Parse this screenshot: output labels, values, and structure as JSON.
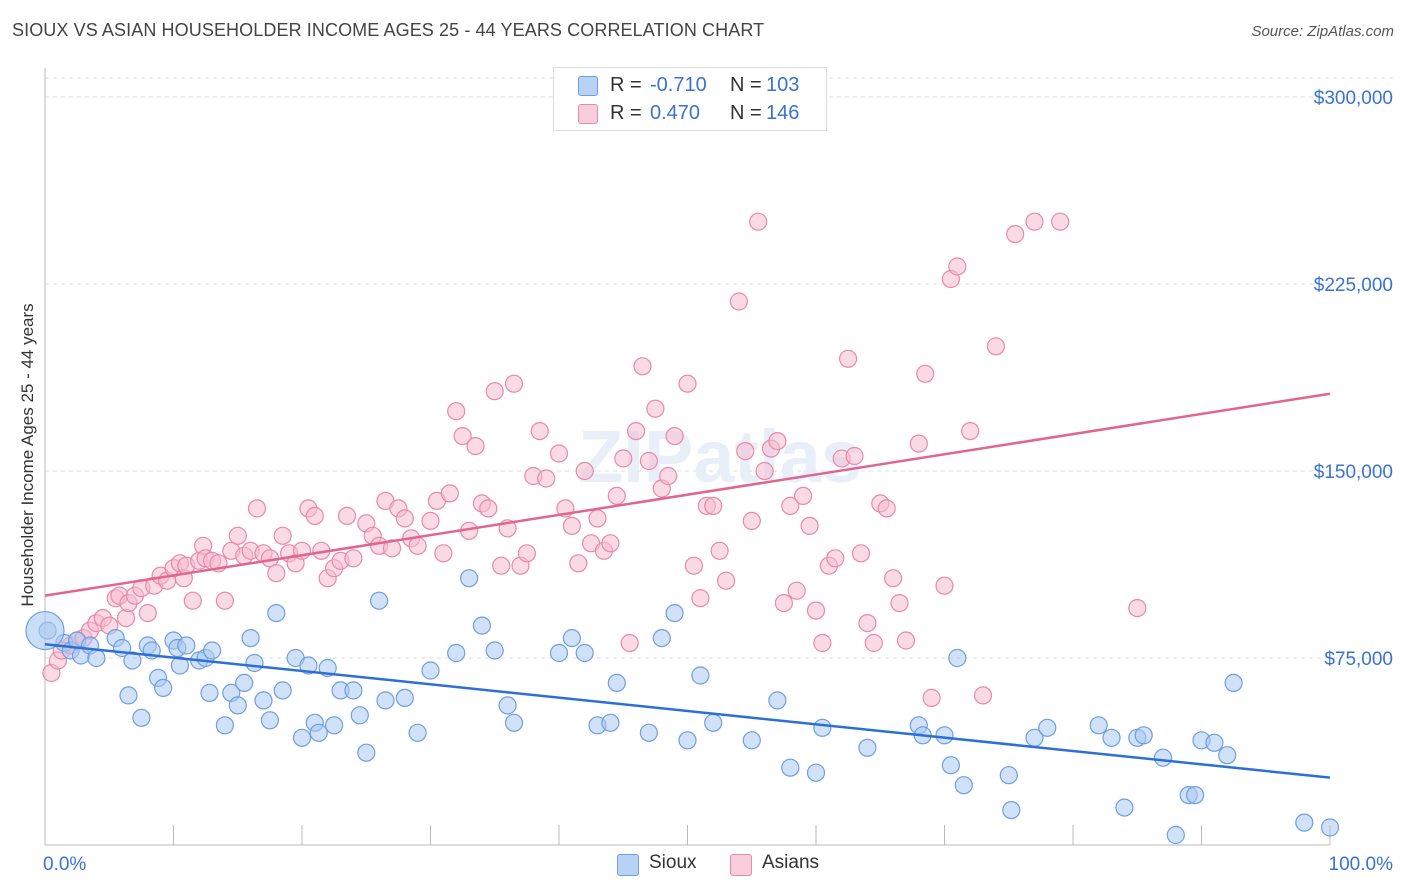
{
  "header": {
    "title": "SIOUX VS ASIAN HOUSEHOLDER INCOME AGES 25 - 44 YEARS CORRELATION CHART",
    "source": "Source: ZipAtlas.com"
  },
  "legend": {
    "rows": [
      {
        "r_label": "R =",
        "r_value": "-0.710",
        "n_label": "N =",
        "n_value": "103"
      },
      {
        "r_label": "R =",
        "r_value": "0.470",
        "n_label": "N =",
        "n_value": "146"
      }
    ]
  },
  "bottom_legend": {
    "sioux": "Sioux",
    "asians": "Asians"
  },
  "watermark": "ZIPatlas",
  "colors": {
    "sioux_fill": "#a9c8f2",
    "sioux_stroke": "#6e9fe0",
    "sioux_line": "#2e6fd6",
    "asian_fill": "#f6bccf",
    "asian_stroke": "#e889a8",
    "asian_line": "#e06690",
    "tick_label": "#3a72d4",
    "grid": "#dddddd"
  },
  "chart_data": {
    "type": "scatter",
    "title": "SIOUX VS ASIAN HOUSEHOLDER INCOME AGES 25 - 44 YEARS CORRELATION CHART",
    "xlabel": "",
    "ylabel": "Householder Income Ages 25 - 44 years",
    "xlim": [
      0,
      100
    ],
    "ylim": [
      0,
      300000
    ],
    "x_tick_labels": [
      "0.0%",
      "100.0%"
    ],
    "y_ticks": [
      75000,
      150000,
      225000,
      300000
    ],
    "y_tick_labels": [
      "$75,000",
      "$150,000",
      "$225,000",
      "$300,000"
    ],
    "grid": "horizontal dashed",
    "legend_position": "top-center",
    "series": [
      {
        "name": "Sioux",
        "R": -0.71,
        "N": 103,
        "trend": [
          [
            0,
            80500
          ],
          [
            100,
            27000
          ]
        ],
        "points": [
          [
            0.2,
            86000
          ],
          [
            1.5,
            81000
          ],
          [
            2,
            78000
          ],
          [
            2.5,
            82000
          ],
          [
            2.8,
            76000
          ],
          [
            3.5,
            80000
          ],
          [
            4,
            75000
          ],
          [
            5.5,
            83000
          ],
          [
            6,
            79000
          ],
          [
            6.5,
            60000
          ],
          [
            6.8,
            74000
          ],
          [
            7.5,
            51000
          ],
          [
            8,
            80000
          ],
          [
            8.3,
            78000
          ],
          [
            8.8,
            67000
          ],
          [
            9.2,
            63000
          ],
          [
            10,
            82000
          ],
          [
            10.3,
            79000
          ],
          [
            10.5,
            72000
          ],
          [
            11,
            80000
          ],
          [
            12,
            74000
          ],
          [
            12.5,
            75000
          ],
          [
            12.8,
            61000
          ],
          [
            13,
            78000
          ],
          [
            14,
            48000
          ],
          [
            14.5,
            61000
          ],
          [
            15,
            56000
          ],
          [
            15.5,
            65000
          ],
          [
            16,
            83000
          ],
          [
            16.3,
            73000
          ],
          [
            17,
            58000
          ],
          [
            17.5,
            50000
          ],
          [
            18,
            93000
          ],
          [
            18.5,
            62000
          ],
          [
            19.5,
            75000
          ],
          [
            20,
            43000
          ],
          [
            20.5,
            72000
          ],
          [
            21,
            49000
          ],
          [
            21.3,
            45000
          ],
          [
            22,
            71000
          ],
          [
            22.5,
            48000
          ],
          [
            23,
            62000
          ],
          [
            24,
            62000
          ],
          [
            24.5,
            52000
          ],
          [
            25,
            37000
          ],
          [
            26,
            98000
          ],
          [
            26.5,
            58000
          ],
          [
            28,
            59000
          ],
          [
            29,
            45000
          ],
          [
            30,
            70000
          ],
          [
            32,
            77000
          ],
          [
            33,
            107000
          ],
          [
            34,
            88000
          ],
          [
            35,
            78000
          ],
          [
            36,
            56000
          ],
          [
            36.5,
            49000
          ],
          [
            40,
            77000
          ],
          [
            41,
            83000
          ],
          [
            42,
            77000
          ],
          [
            43,
            48000
          ],
          [
            44,
            49000
          ],
          [
            44.5,
            65000
          ],
          [
            47,
            45000
          ],
          [
            48,
            83000
          ],
          [
            49,
            93000
          ],
          [
            50,
            42000
          ],
          [
            51,
            68000
          ],
          [
            52,
            49000
          ],
          [
            55,
            42000
          ],
          [
            57,
            58000
          ],
          [
            58,
            31000
          ],
          [
            60,
            29000
          ],
          [
            60.5,
            47000
          ],
          [
            64,
            39000
          ],
          [
            68,
            48000
          ],
          [
            68.3,
            44000
          ],
          [
            70,
            44000
          ],
          [
            70.5,
            32000
          ],
          [
            71,
            75000
          ],
          [
            71.5,
            24000
          ],
          [
            75,
            28000
          ],
          [
            75.2,
            14000
          ],
          [
            77,
            43000
          ],
          [
            78,
            47000
          ],
          [
            82,
            48000
          ],
          [
            83,
            43000
          ],
          [
            84,
            15000
          ],
          [
            85,
            43000
          ],
          [
            85.5,
            44000
          ],
          [
            87,
            35000
          ],
          [
            88,
            4000
          ],
          [
            89,
            20000
          ],
          [
            89.5,
            20000
          ],
          [
            90,
            42000
          ],
          [
            91,
            41000
          ],
          [
            92,
            36000
          ],
          [
            92.5,
            65000
          ],
          [
            98,
            9000
          ],
          [
            100,
            7000
          ]
        ]
      },
      {
        "name": "Asians",
        "R": 0.47,
        "N": 146,
        "trend": [
          [
            0,
            100000
          ],
          [
            100,
            181000
          ]
        ],
        "points": [
          [
            0.5,
            69000
          ],
          [
            1,
            74000
          ],
          [
            1.3,
            78000
          ],
          [
            2,
            80000
          ],
          [
            2.5,
            82000
          ],
          [
            3,
            83000
          ],
          [
            3.5,
            86000
          ],
          [
            4,
            89000
          ],
          [
            4.5,
            91000
          ],
          [
            5,
            88000
          ],
          [
            5.5,
            99000
          ],
          [
            5.8,
            100000
          ],
          [
            6.3,
            91000
          ],
          [
            6.5,
            97000
          ],
          [
            7,
            100000
          ],
          [
            7.5,
            103000
          ],
          [
            8,
            93000
          ],
          [
            8.5,
            104000
          ],
          [
            9,
            108000
          ],
          [
            9.5,
            106000
          ],
          [
            10,
            111000
          ],
          [
            10.5,
            113000
          ],
          [
            10.8,
            107000
          ],
          [
            11,
            112000
          ],
          [
            11.5,
            98000
          ],
          [
            12,
            114000
          ],
          [
            12.3,
            120000
          ],
          [
            12.5,
            115000
          ],
          [
            13,
            114000
          ],
          [
            13.5,
            113000
          ],
          [
            14,
            98000
          ],
          [
            14.5,
            118000
          ],
          [
            15,
            124000
          ],
          [
            15.5,
            116000
          ],
          [
            16,
            118000
          ],
          [
            16.5,
            135000
          ],
          [
            17,
            117000
          ],
          [
            17.5,
            115000
          ],
          [
            18,
            109000
          ],
          [
            18.5,
            124000
          ],
          [
            19,
            117000
          ],
          [
            19.5,
            113000
          ],
          [
            20,
            118000
          ],
          [
            20.5,
            135000
          ],
          [
            21,
            132000
          ],
          [
            21.5,
            118000
          ],
          [
            22,
            107000
          ],
          [
            22.5,
            111000
          ],
          [
            23,
            114000
          ],
          [
            23.5,
            132000
          ],
          [
            24,
            115000
          ],
          [
            25,
            129000
          ],
          [
            25.5,
            124000
          ],
          [
            26,
            120000
          ],
          [
            26.5,
            138000
          ],
          [
            27,
            119000
          ],
          [
            27.5,
            135000
          ],
          [
            28,
            131000
          ],
          [
            28.5,
            123000
          ],
          [
            29,
            120000
          ],
          [
            30,
            130000
          ],
          [
            30.5,
            138000
          ],
          [
            31,
            117000
          ],
          [
            31.5,
            141000
          ],
          [
            32,
            174000
          ],
          [
            32.5,
            164000
          ],
          [
            33,
            126000
          ],
          [
            33.5,
            160000
          ],
          [
            34,
            137000
          ],
          [
            34.5,
            135000
          ],
          [
            35,
            182000
          ],
          [
            35.5,
            112000
          ],
          [
            36,
            127000
          ],
          [
            36.5,
            185000
          ],
          [
            37,
            112000
          ],
          [
            37.5,
            117000
          ],
          [
            38,
            148000
          ],
          [
            38.5,
            166000
          ],
          [
            39,
            147000
          ],
          [
            40,
            157000
          ],
          [
            40.5,
            135000
          ],
          [
            41,
            128000
          ],
          [
            41.5,
            113000
          ],
          [
            42,
            150000
          ],
          [
            42.5,
            121000
          ],
          [
            43,
            131000
          ],
          [
            43.5,
            118000
          ],
          [
            44,
            121000
          ],
          [
            44.5,
            140000
          ],
          [
            45,
            155000
          ],
          [
            45.5,
            81000
          ],
          [
            46,
            166000
          ],
          [
            46.5,
            192000
          ],
          [
            47,
            154000
          ],
          [
            47.5,
            175000
          ],
          [
            48,
            143000
          ],
          [
            48.5,
            148000
          ],
          [
            49,
            164000
          ],
          [
            50,
            185000
          ],
          [
            50.5,
            112000
          ],
          [
            51,
            99000
          ],
          [
            51.5,
            136000
          ],
          [
            52,
            136000
          ],
          [
            52.5,
            118000
          ],
          [
            53,
            106000
          ],
          [
            54,
            218000
          ],
          [
            54.5,
            158000
          ],
          [
            55,
            130000
          ],
          [
            55.5,
            250000
          ],
          [
            56,
            150000
          ],
          [
            56.5,
            159000
          ],
          [
            57,
            162000
          ],
          [
            57.5,
            97000
          ],
          [
            58,
            136000
          ],
          [
            58.5,
            102000
          ],
          [
            59,
            140000
          ],
          [
            59.5,
            128000
          ],
          [
            60,
            94000
          ],
          [
            60.5,
            81000
          ],
          [
            61,
            112000
          ],
          [
            61.5,
            115000
          ],
          [
            62,
            155000
          ],
          [
            62.5,
            195000
          ],
          [
            63,
            156000
          ],
          [
            63.5,
            117000
          ],
          [
            64,
            89000
          ],
          [
            64.5,
            81000
          ],
          [
            65,
            137000
          ],
          [
            65.5,
            135000
          ],
          [
            66,
            107000
          ],
          [
            66.5,
            97000
          ],
          [
            67,
            82000
          ],
          [
            68,
            161000
          ],
          [
            68.5,
            189000
          ],
          [
            69,
            59000
          ],
          [
            70,
            104000
          ],
          [
            70.5,
            227000
          ],
          [
            71,
            232000
          ],
          [
            72,
            166000
          ],
          [
            73,
            60000
          ],
          [
            74,
            200000
          ],
          [
            75.5,
            245000
          ],
          [
            77,
            250000
          ],
          [
            79,
            250000
          ],
          [
            85,
            95000
          ]
        ]
      }
    ]
  }
}
